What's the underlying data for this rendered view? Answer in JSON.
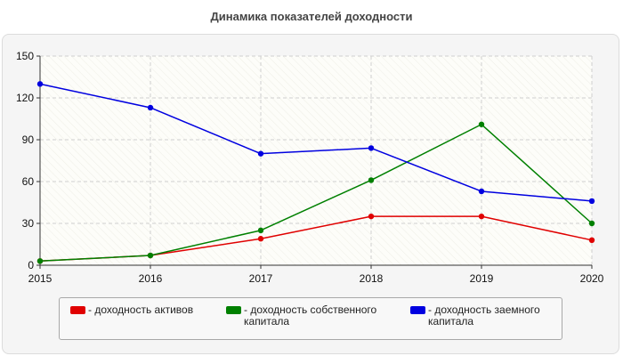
{
  "page": {
    "title": "Динамика показателей доходности"
  },
  "chart_data": {
    "type": "line",
    "title": "Динамика показателей доходности",
    "xlabel": "",
    "ylabel": "",
    "x": [
      2015,
      2016,
      2017,
      2018,
      2019,
      2020
    ],
    "x_tick_labels": [
      "2015",
      "2016",
      "2017",
      "2018",
      "2019",
      "2020"
    ],
    "ylim": [
      0,
      150
    ],
    "y_ticks": [
      0,
      30,
      60,
      90,
      120,
      150
    ],
    "y_tick_labels": [
      "0",
      "30",
      "60",
      "90",
      "120",
      "150"
    ],
    "grid": true,
    "legend_position": "bottom",
    "series": [
      {
        "name": "- доходность активов",
        "color": "#e00000",
        "values": [
          3,
          7,
          19,
          35,
          35,
          18
        ]
      },
      {
        "name": "- доходность собственного капитала",
        "color": "#008000",
        "values": [
          3,
          7,
          25,
          61,
          101,
          30
        ]
      },
      {
        "name": "- доходность заемного капитала",
        "color": "#0000e0",
        "values": [
          130,
          113,
          80,
          84,
          53,
          46
        ]
      }
    ]
  }
}
